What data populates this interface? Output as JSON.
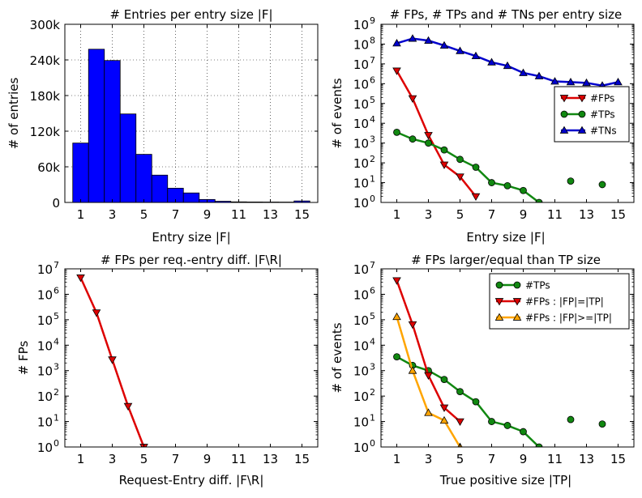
{
  "chart_data": [
    {
      "type": "bar",
      "title": "# Entries per entry size |F|",
      "xlabel": "Entry size |F|",
      "ylabel": "# of entries",
      "xlim": [
        0,
        16
      ],
      "ylim": [
        0,
        300000
      ],
      "xticks": [
        1,
        3,
        5,
        7,
        9,
        11,
        13,
        15
      ],
      "xtick_labels": [
        "1",
        "3",
        "5",
        "7",
        "9",
        "11",
        "13",
        "15"
      ],
      "yticks": [
        0,
        60000,
        120000,
        180000,
        240000,
        300000
      ],
      "ytick_labels": [
        "0",
        "60k",
        "120k",
        "180k",
        "240k",
        "300k"
      ],
      "grid": true,
      "bar_color": "#0000ff",
      "categories": [
        1,
        2,
        3,
        4,
        5,
        6,
        7,
        8,
        9,
        10,
        11,
        12,
        13,
        14,
        15
      ],
      "values": [
        100000,
        258000,
        239000,
        149000,
        81000,
        46000,
        24000,
        16000,
        5000,
        2000,
        1000,
        800,
        700,
        600,
        2500
      ]
    },
    {
      "type": "line",
      "title": "# FPs, # TPs and # TNs per entry size",
      "xlabel": "Entry size |F|",
      "ylabel": "# of events",
      "xlim": [
        0,
        16
      ],
      "ylim": [
        1,
        1000000000
      ],
      "yscale": "log",
      "xticks": [
        1,
        3,
        5,
        7,
        9,
        11,
        13,
        15
      ],
      "xtick_labels": [
        "1",
        "3",
        "5",
        "7",
        "9",
        "11",
        "13",
        "15"
      ],
      "ytick_exponents": [
        "0",
        "1",
        "2",
        "3",
        "4",
        "5",
        "6",
        "7",
        "8",
        "9"
      ],
      "ytick_base": "10",
      "grid": false,
      "legend_position": "center-right",
      "series": [
        {
          "name": "#FPs",
          "color": "#dd0000",
          "marker": "triangle-down",
          "x": [
            1,
            2,
            3,
            4,
            5,
            6
          ],
          "y": [
            4500000,
            180000,
            2500,
            80,
            20,
            2
          ]
        },
        {
          "name": "#TPs",
          "color": "#118811",
          "marker": "circle",
          "x": [
            1,
            2,
            3,
            4,
            5,
            6,
            7,
            8,
            9,
            10,
            12,
            14
          ],
          "y": [
            3500,
            1600,
            1000,
            450,
            150,
            60,
            10,
            7,
            4,
            1,
            12,
            8
          ],
          "connected_until": 10
        },
        {
          "name": "#TNs",
          "color": "#0000cc",
          "marker": "triangle-up",
          "x": [
            1,
            2,
            3,
            4,
            5,
            6,
            7,
            8,
            9,
            10,
            11,
            12,
            13,
            14,
            15
          ],
          "y": [
            110000000,
            190000000,
            150000000,
            85000000,
            45000000,
            25000000,
            12000000,
            8000000,
            3500000,
            2400000,
            1300000,
            1200000,
            1100000,
            800000,
            1200000
          ]
        }
      ]
    },
    {
      "type": "line",
      "title": "# FPs per req.-entry diff. |F\\R|",
      "xlabel": "Request-Entry diff. |F\\R|",
      "ylabel": "# FPs",
      "xlim": [
        0,
        16
      ],
      "ylim": [
        1,
        10000000
      ],
      "yscale": "log",
      "xticks": [
        1,
        3,
        5,
        7,
        9,
        11,
        13,
        15
      ],
      "xtick_labels": [
        "1",
        "3",
        "5",
        "7",
        "9",
        "11",
        "13",
        "15"
      ],
      "ytick_exponents": [
        "0",
        "1",
        "2",
        "3",
        "4",
        "5",
        "6",
        "7"
      ],
      "ytick_base": "10",
      "grid": false,
      "series": [
        {
          "color": "#dd0000",
          "marker": "triangle-down",
          "x": [
            1,
            2,
            3,
            4,
            5
          ],
          "y": [
            4500000,
            190000,
            2700,
            40,
            1
          ]
        }
      ]
    },
    {
      "type": "line",
      "title": "# FPs larger/equal than TP size",
      "xlabel": "True positive size |TP|",
      "ylabel": "# of events",
      "xlim": [
        0,
        16
      ],
      "ylim": [
        1,
        10000000
      ],
      "yscale": "log",
      "xticks": [
        1,
        3,
        5,
        7,
        9,
        11,
        13,
        15
      ],
      "xtick_labels": [
        "1",
        "3",
        "5",
        "7",
        "9",
        "11",
        "13",
        "15"
      ],
      "ytick_exponents": [
        "0",
        "1",
        "2",
        "3",
        "4",
        "5",
        "6",
        "7"
      ],
      "ytick_base": "10",
      "grid": false,
      "legend_position": "top-right",
      "series": [
        {
          "name": "#TPs",
          "color": "#118811",
          "marker": "circle",
          "x": [
            1,
            2,
            3,
            4,
            5,
            6,
            7,
            8,
            9,
            10,
            12,
            14
          ],
          "y": [
            3500,
            1600,
            1000,
            450,
            150,
            60,
            10,
            7,
            4,
            1,
            12,
            8
          ],
          "connected_until": 10
        },
        {
          "name": "#FPs : |FP|=|TP|",
          "color": "#dd0000",
          "marker": "triangle-down",
          "x": [
            1,
            2,
            3,
            4,
            5
          ],
          "y": [
            3500000,
            65000,
            650,
            35,
            10
          ]
        },
        {
          "name": "#FPs : |FP|>=|TP|",
          "color": "#ffa500",
          "marker": "triangle-up",
          "x": [
            1,
            2,
            3,
            4,
            5
          ],
          "y": [
            130000,
            1000,
            22,
            11,
            1
          ]
        }
      ]
    }
  ]
}
